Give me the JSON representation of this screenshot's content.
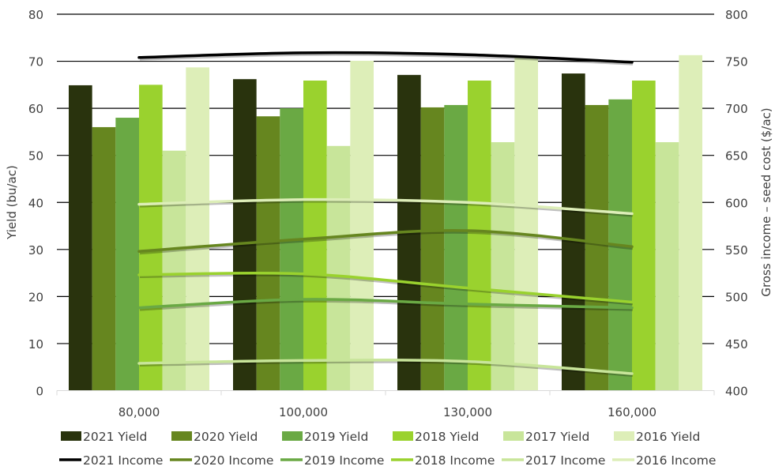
{
  "chart_data": {
    "type": "bar+line",
    "categories": [
      "80,000",
      "100,000",
      "130,000",
      "160,000"
    ],
    "ylabel": "Yield (bu/ac)",
    "y2label": "Gross income – seed cost ($/ac)",
    "ylim": [
      0,
      80
    ],
    "y2lim": [
      400,
      800
    ],
    "yticks": [
      "0",
      "10",
      "20",
      "30",
      "40",
      "50",
      "60",
      "70",
      "80"
    ],
    "y2ticks": [
      "400",
      "450",
      "500",
      "550",
      "600",
      "650",
      "700",
      "750",
      "800"
    ],
    "grid": true,
    "legend_position": "bottom",
    "bar_series": [
      {
        "name": "2021 Yield",
        "color": "#29330d",
        "values": [
          64.9,
          66.2,
          67.1,
          67.4
        ]
      },
      {
        "name": "2020 Yield",
        "color": "#66861f",
        "values": [
          56.0,
          58.3,
          60.2,
          60.7
        ]
      },
      {
        "name": "2019 Yield",
        "color": "#6aa944",
        "values": [
          58.0,
          60.0,
          60.7,
          61.9
        ]
      },
      {
        "name": "2018 Yield",
        "color": "#9ad22e",
        "values": [
          65.0,
          65.9,
          65.9,
          65.9
        ]
      },
      {
        "name": "2017 Yield",
        "color": "#c8e59a",
        "values": [
          51.0,
          52.0,
          52.8,
          52.8
        ]
      },
      {
        "name": "2016 Yield",
        "color": "#ddeeb8",
        "values": [
          68.7,
          70.1,
          70.8,
          71.3
        ]
      }
    ],
    "line_series": [
      {
        "name": "2021 Income",
        "color": "#000000",
        "values": [
          754,
          759,
          757,
          749
        ]
      },
      {
        "name": "2020 Income",
        "color": "#66861f",
        "values": [
          548,
          561,
          570,
          553
        ]
      },
      {
        "name": "2019 Income",
        "color": "#6aa944",
        "values": [
          488,
          497,
          492,
          488
        ]
      },
      {
        "name": "2018 Income",
        "color": "#9ad22e",
        "values": [
          523,
          524,
          509,
          494
        ]
      },
      {
        "name": "2017 Income",
        "color": "#c8e59a",
        "values": [
          429,
          432,
          431,
          418
        ]
      },
      {
        "name": "2016 Income",
        "color": "#ddeeb8",
        "values": [
          598,
          603,
          600,
          588
        ]
      }
    ]
  }
}
